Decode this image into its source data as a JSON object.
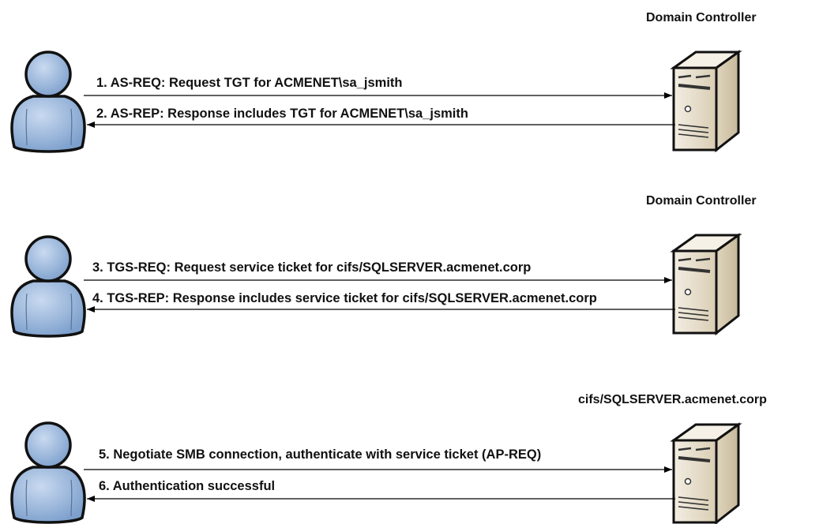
{
  "panels": [
    {
      "server_title": "Domain Controller",
      "request": "1. AS-REQ: Request TGT for ACMENET\\sa_jsmith",
      "response": "2. AS-REP: Response includes TGT for ACMENET\\sa_jsmith"
    },
    {
      "server_title": "Domain Controller",
      "request": "3. TGS-REQ: Request service ticket for cifs/SQLSERVER.acmenet.corp",
      "response": "4. TGS-REP: Response includes service ticket for cifs/SQLSERVER.acmenet.corp"
    },
    {
      "server_title": "cifs/SQLSERVER.acmenet.corp",
      "request": "5. Negotiate SMB connection, authenticate with service ticket (AP-REQ)",
      "response": "6. Authentication successful"
    }
  ],
  "colors": {
    "user": "#8fb0d8",
    "server": "#e6dcc8",
    "line": "#000000"
  }
}
